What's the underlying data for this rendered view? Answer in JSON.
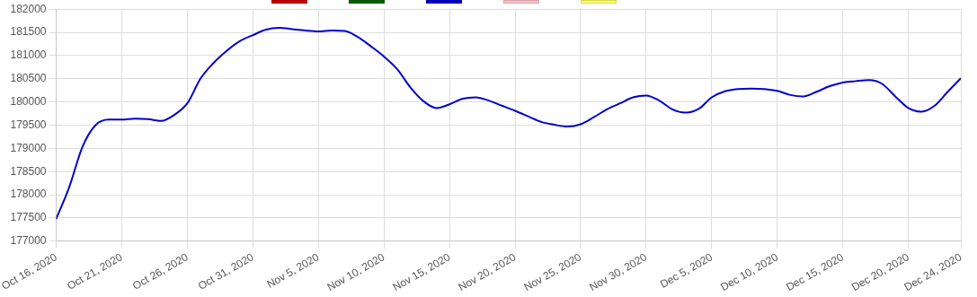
{
  "chart_data": {
    "type": "line",
    "x": [
      "2020-10-16",
      "2020-10-17",
      "2020-10-18",
      "2020-10-19",
      "2020-10-20",
      "2020-10-21",
      "2020-10-22",
      "2020-10-23",
      "2020-10-24",
      "2020-10-25",
      "2020-10-26",
      "2020-10-27",
      "2020-10-28",
      "2020-10-29",
      "2020-10-30",
      "2020-10-31",
      "2020-11-01",
      "2020-11-02",
      "2020-11-03",
      "2020-11-04",
      "2020-11-05",
      "2020-11-06",
      "2020-11-07",
      "2020-11-08",
      "2020-11-09",
      "2020-11-10",
      "2020-11-11",
      "2020-11-12",
      "2020-11-13",
      "2020-11-14",
      "2020-11-15",
      "2020-11-16",
      "2020-11-17",
      "2020-11-18",
      "2020-11-19",
      "2020-11-20",
      "2020-11-21",
      "2020-11-22",
      "2020-11-23",
      "2020-11-24",
      "2020-11-25",
      "2020-11-26",
      "2020-11-27",
      "2020-11-28",
      "2020-11-29",
      "2020-11-30",
      "2020-12-01",
      "2020-12-02",
      "2020-12-03",
      "2020-12-04",
      "2020-12-05",
      "2020-12-06",
      "2020-12-07",
      "2020-12-08",
      "2020-12-09",
      "2020-12-10",
      "2020-12-11",
      "2020-12-12",
      "2020-12-13",
      "2020-12-14",
      "2020-12-15",
      "2020-12-16",
      "2020-12-17",
      "2020-12-18",
      "2020-12-19",
      "2020-12-20",
      "2020-12-21",
      "2020-12-22",
      "2020-12-23",
      "2020-12-24"
    ],
    "series": [
      {
        "color": "#0000cc",
        "values": [
          177480,
          178170,
          179030,
          179500,
          179620,
          179620,
          179640,
          179630,
          179590,
          179720,
          179970,
          180500,
          180840,
          181100,
          181310,
          181440,
          181560,
          181600,
          181570,
          181540,
          181520,
          181540,
          181530,
          181400,
          181200,
          180980,
          180710,
          180320,
          180020,
          179870,
          179950,
          180070,
          180100,
          180030,
          179920,
          179810,
          179690,
          179570,
          179510,
          179470,
          179520,
          179670,
          179840,
          179970,
          180100,
          180140,
          180030,
          179840,
          179770,
          179850,
          180100,
          180230,
          180280,
          180290,
          180280,
          180240,
          180150,
          180120,
          180220,
          180340,
          180420,
          180450,
          180470,
          180390,
          180120,
          179870,
          179790,
          179920,
          180220,
          180510
        ]
      }
    ],
    "xlim": [
      "2020-10-16",
      "2020-12-24"
    ],
    "xticks": [
      {
        "value": "2020-10-16",
        "label": "Oct 16, 2020"
      },
      {
        "value": "2020-10-21",
        "label": "Oct 21, 2020"
      },
      {
        "value": "2020-10-26",
        "label": "Oct 26, 2020"
      },
      {
        "value": "2020-10-31",
        "label": "Oct 31, 2020"
      },
      {
        "value": "2020-11-05",
        "label": "Nov 5, 2020"
      },
      {
        "value": "2020-11-10",
        "label": "Nov 10, 2020"
      },
      {
        "value": "2020-11-15",
        "label": "Nov 15, 2020"
      },
      {
        "value": "2020-11-20",
        "label": "Nov 20, 2020"
      },
      {
        "value": "2020-11-25",
        "label": "Nov 25, 2020"
      },
      {
        "value": "2020-11-30",
        "label": "Nov 30, 2020"
      },
      {
        "value": "2020-12-05",
        "label": "Dec 5, 2020"
      },
      {
        "value": "2020-12-10",
        "label": "Dec 10, 2020"
      },
      {
        "value": "2020-12-15",
        "label": "Dec 15, 2020"
      },
      {
        "value": "2020-12-20",
        "label": "Dec 20, 2020"
      },
      {
        "value": "2020-12-24",
        "label": "Dec 24, 2020"
      }
    ],
    "ylim": [
      177000,
      182000
    ],
    "yticks": [
      177000,
      177500,
      178000,
      178500,
      179000,
      179500,
      180000,
      180500,
      181000,
      181500,
      182000
    ],
    "grid": true,
    "marker": "none",
    "line_style": "solid"
  }
}
